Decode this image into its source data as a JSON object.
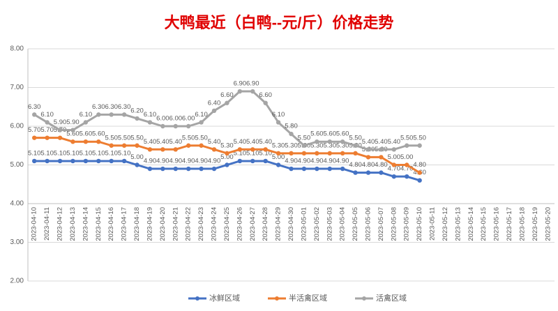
{
  "chart_data": {
    "type": "line",
    "title": "大鸭最近（白鸭--元/斤）价格走势",
    "categories": [
      "2023-04-10",
      "2023-04-11",
      "2023-04-12",
      "2023-04-13",
      "2023-04-14",
      "2023-04-15",
      "2023-04-16",
      "2023-04-17",
      "2023-04-18",
      "2023-04-19",
      "2023-04-20",
      "2023-04-21",
      "2023-04-22",
      "2023-04-23",
      "2023-04-24",
      "2023-04-25",
      "2023-04-26",
      "2023-04-27",
      "2023-04-28",
      "2023-04-29",
      "2023-04-30",
      "2023-05-01",
      "2023-05-02",
      "2023-05-03",
      "2023-05-04",
      "2023-05-05",
      "2023-05-06",
      "2023-05-07",
      "2023-05-08",
      "2023-05-09",
      "2023-05-10",
      "2023-05-11",
      "2023-05-12",
      "2023-05-13",
      "2023-05-14",
      "2023-05-15",
      "2023-05-16",
      "2023-05-17",
      "2023-05-18",
      "2023-05-19",
      "2023-05-20"
    ],
    "series": [
      {
        "name": "冰鲜区域",
        "color": "#4472c4",
        "values": [
          5.1,
          5.1,
          5.1,
          5.1,
          5.1,
          5.1,
          5.1,
          5.1,
          5.0,
          4.9,
          4.9,
          4.9,
          4.9,
          4.9,
          4.9,
          5.0,
          5.1,
          5.1,
          5.1,
          5.0,
          4.9,
          4.9,
          4.9,
          4.9,
          4.9,
          4.8,
          4.8,
          4.8,
          4.7,
          4.7,
          4.6,
          null,
          null,
          null,
          null,
          null,
          null,
          null,
          null,
          null,
          null
        ],
        "value_labels": [
          "5.10",
          "5.10",
          "5.10",
          "5.10",
          "5.10",
          "5.10",
          "5.10",
          "5.10",
          "5.00",
          "4.90",
          "4.90",
          "4.90",
          "4.90",
          "4.90",
          "4.90",
          "5.00",
          "5.10",
          "5.10",
          "5.10",
          "5.00",
          "4.90",
          "4.90",
          "4.90",
          "4.90",
          "4.90",
          "4.80",
          "4.80",
          "4.80",
          "4.70",
          "4.70",
          "4.60",
          null,
          null,
          null,
          null,
          null,
          null,
          null,
          null,
          null,
          null
        ]
      },
      {
        "name": "半活禽区域",
        "color": "#ed7d31",
        "values": [
          5.7,
          5.7,
          5.7,
          5.6,
          5.6,
          5.6,
          5.5,
          5.5,
          5.5,
          5.4,
          5.4,
          5.4,
          5.5,
          5.5,
          5.4,
          5.3,
          5.4,
          5.4,
          5.4,
          5.3,
          5.3,
          5.3,
          5.3,
          5.3,
          5.3,
          5.3,
          5.2,
          5.2,
          5.0,
          5.0,
          4.8,
          null,
          null,
          null,
          null,
          null,
          null,
          null,
          null,
          null,
          null
        ],
        "value_labels": [
          "5.70",
          "5.70",
          "5.70",
          "5.60",
          "5.60",
          "5.60",
          "5.50",
          "5.50",
          "5.50",
          "5.40",
          "5.40",
          "5.40",
          "5.50",
          "5.50",
          "5.40",
          "5.30",
          "5.40",
          "5.40",
          "5.40",
          "5.30",
          "5.30",
          "5.30",
          "5.30",
          "5.30",
          "5.30",
          "5.30",
          "5.20",
          "5.20",
          "5.00",
          "5.00",
          "4.80",
          null,
          null,
          null,
          null,
          null,
          null,
          null,
          null,
          null,
          null
        ]
      },
      {
        "name": "活禽区域",
        "color": "#a5a5a5",
        "values": [
          6.3,
          6.1,
          5.9,
          5.9,
          6.1,
          6.3,
          6.3,
          6.3,
          6.2,
          6.1,
          6.0,
          6.0,
          6.0,
          6.1,
          6.4,
          6.6,
          6.9,
          6.9,
          6.6,
          6.1,
          5.8,
          5.5,
          5.6,
          5.6,
          5.6,
          5.5,
          5.4,
          5.4,
          5.4,
          5.5,
          5.5,
          null,
          null,
          null,
          null,
          null,
          null,
          null,
          null,
          null,
          null
        ],
        "value_labels": [
          "6.30",
          "6.10",
          "5.90",
          "5.90",
          "6.10",
          "6.30",
          "6.30",
          "6.30",
          "6.20",
          "6.10",
          "6.00",
          "6.00",
          "6.00",
          "6.10",
          "6.40",
          "6.60",
          "6.90",
          "6.90",
          "6.60",
          "6.10",
          "5.80",
          "5.50",
          "5.60",
          "5.60",
          "5.60",
          "5.50",
          "5.40",
          "5.40",
          "5.40",
          "5.50",
          "5.50",
          null,
          null,
          null,
          null,
          null,
          null,
          null,
          null,
          null,
          null
        ]
      }
    ],
    "ylim": [
      2,
      8
    ],
    "yticks": [
      {
        "value": 2,
        "label": "2.00"
      },
      {
        "value": 3,
        "label": "3.00"
      },
      {
        "value": 4,
        "label": "4.00"
      },
      {
        "value": 5,
        "label": "5.00"
      },
      {
        "value": 6,
        "label": "6.00"
      },
      {
        "value": 7,
        "label": "7.00"
      },
      {
        "value": 8,
        "label": "8.00"
      }
    ],
    "xaxis_crosses": 4,
    "grid": true,
    "legend": "bottom"
  }
}
